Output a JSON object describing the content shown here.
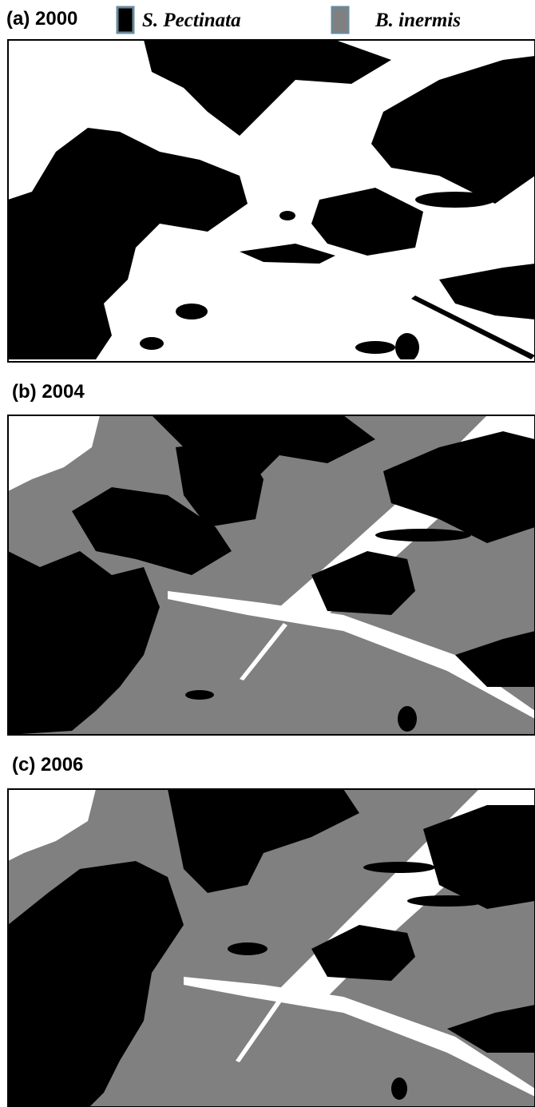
{
  "legend": [
    {
      "label": "S. Pectinata"
    },
    {
      "label": "B. inermis"
    }
  ],
  "panels": [
    {
      "label": "(a) 2000"
    },
    {
      "label": "(b) 2004"
    },
    {
      "label": "(c) 2006"
    }
  ]
}
